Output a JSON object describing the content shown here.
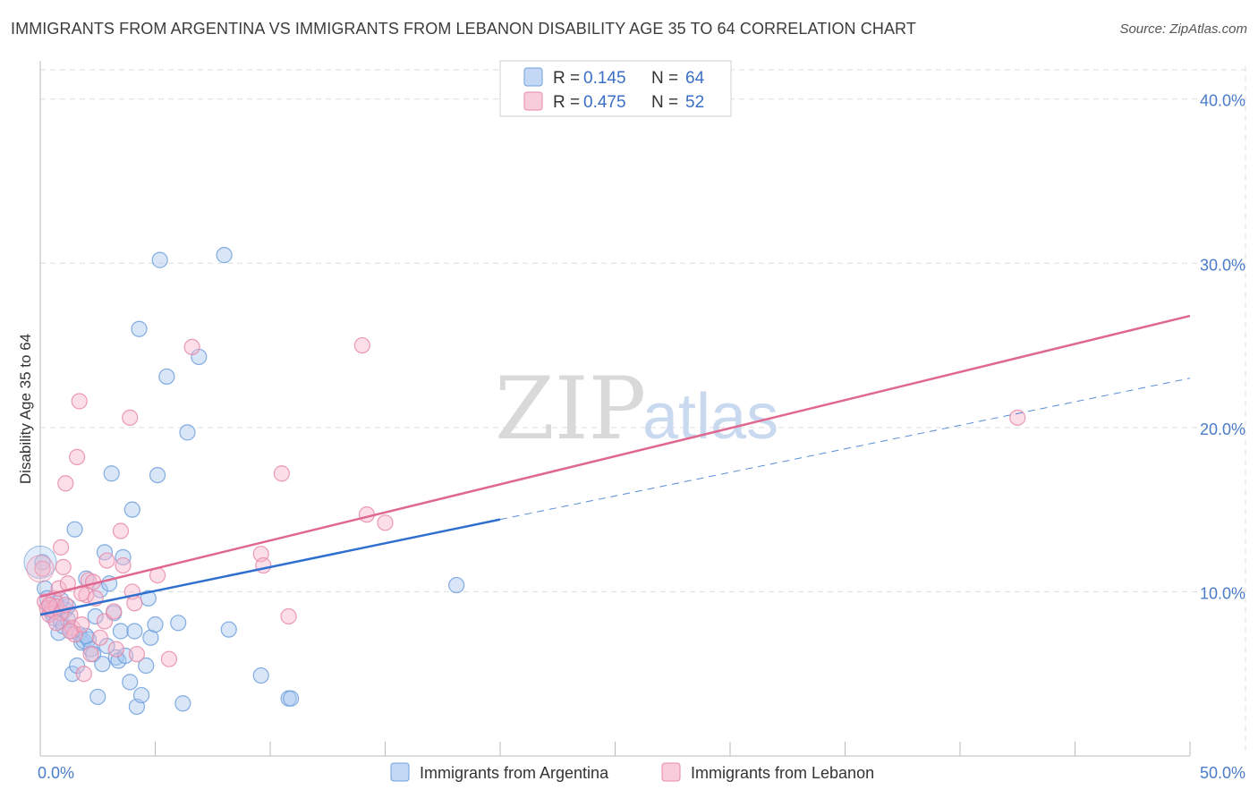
{
  "header": {
    "title": "IMMIGRANTS FROM ARGENTINA VS IMMIGRANTS FROM LEBANON DISABILITY AGE 35 TO 64 CORRELATION CHART",
    "source": "Source: ZipAtlas.com"
  },
  "watermark": {
    "zip": "ZIP",
    "atlas": "atlas"
  },
  "colors": {
    "argentina_fill": "#a9c8f0",
    "argentina_stroke": "#6f9fdc",
    "argentina_line": "#2f6fcf",
    "lebanon_fill": "#f7b6cc",
    "lebanon_stroke": "#e88aa8",
    "lebanon_line": "#e0678f",
    "grid": "#dddddd",
    "tick_label": "#4a7cc9"
  },
  "legend": {
    "rows": [
      {
        "r_label": "R =",
        "r_value": "0.145",
        "n_label": "N =",
        "n_value": "64"
      },
      {
        "r_label": "R =",
        "r_value": "0.475",
        "n_label": "N =",
        "n_value": "52"
      }
    ]
  },
  "chart_data": {
    "type": "scatter",
    "title": "IMMIGRANTS FROM ARGENTINA VS IMMIGRANTS FROM LEBANON DISABILITY AGE 35 TO 64 CORRELATION CHART",
    "xlabel": "",
    "ylabel": "Disability Age 35 to 64",
    "xlim": [
      0,
      50
    ],
    "ylim": [
      0,
      42
    ],
    "x_tick_labels": [
      "0.0%",
      "50.0%"
    ],
    "y_ticks": [
      10,
      20,
      30,
      40
    ],
    "y_tick_labels": [
      "10.0%",
      "20.0%",
      "30.0%",
      "40.0%"
    ],
    "grid": true,
    "legend_position": "top-center",
    "series": [
      {
        "name": "Immigrants from Argentina",
        "R": 0.145,
        "N": 64,
        "trend": {
          "x": [
            0,
            20
          ],
          "y": [
            8.6,
            14.4
          ],
          "dashed_extension_to_x": 50,
          "dashed_end_y": 23.0
        },
        "points": [
          [
            0.1,
            11.8
          ],
          [
            0.2,
            10.2
          ],
          [
            0.3,
            9.6
          ],
          [
            0.4,
            9.0
          ],
          [
            0.5,
            8.7
          ],
          [
            0.6,
            8.4
          ],
          [
            0.7,
            9.3
          ],
          [
            0.8,
            7.5
          ],
          [
            0.9,
            8.2
          ],
          [
            1.0,
            7.9
          ],
          [
            1.1,
            8.9
          ],
          [
            1.2,
            9.1
          ],
          [
            1.3,
            7.6
          ],
          [
            1.4,
            5.0
          ],
          [
            1.5,
            13.8
          ],
          [
            1.6,
            5.5
          ],
          [
            1.7,
            7.4
          ],
          [
            1.8,
            6.9
          ],
          [
            1.9,
            7.0
          ],
          [
            2.0,
            10.8
          ],
          [
            2.1,
            7.1
          ],
          [
            2.2,
            6.5
          ],
          [
            2.3,
            6.2
          ],
          [
            2.4,
            8.5
          ],
          [
            2.5,
            3.6
          ],
          [
            2.6,
            10.1
          ],
          [
            2.7,
            5.6
          ],
          [
            2.8,
            12.4
          ],
          [
            2.9,
            6.7
          ],
          [
            3.0,
            10.5
          ],
          [
            3.1,
            17.2
          ],
          [
            3.2,
            8.7
          ],
          [
            3.3,
            6.0
          ],
          [
            3.4,
            5.8
          ],
          [
            3.5,
            7.6
          ],
          [
            3.6,
            12.1
          ],
          [
            3.7,
            6.1
          ],
          [
            3.9,
            4.5
          ],
          [
            4.0,
            15.0
          ],
          [
            4.1,
            7.6
          ],
          [
            4.2,
            3.0
          ],
          [
            4.3,
            26.0
          ],
          [
            4.4,
            3.7
          ],
          [
            4.6,
            5.5
          ],
          [
            4.7,
            9.6
          ],
          [
            4.8,
            7.2
          ],
          [
            5.0,
            8.0
          ],
          [
            5.1,
            17.1
          ],
          [
            5.2,
            30.2
          ],
          [
            5.5,
            23.1
          ],
          [
            6.0,
            8.1
          ],
          [
            6.2,
            3.2
          ],
          [
            6.4,
            19.7
          ],
          [
            6.9,
            24.3
          ],
          [
            8.0,
            30.5
          ],
          [
            8.2,
            7.7
          ],
          [
            9.6,
            4.9
          ],
          [
            10.8,
            3.5
          ],
          [
            10.9,
            3.5
          ],
          [
            18.1,
            10.4
          ],
          [
            0.6,
            8.8
          ],
          [
            1.2,
            8.3
          ],
          [
            2.0,
            7.3
          ],
          [
            0.9,
            9.5
          ]
        ]
      },
      {
        "name": "Immigrants from Lebanon",
        "R": 0.475,
        "N": 52,
        "trend": {
          "x": [
            0,
            50
          ],
          "y": [
            9.7,
            26.8
          ]
        },
        "points": [
          [
            0.1,
            11.4
          ],
          [
            0.2,
            9.4
          ],
          [
            0.3,
            9.0
          ],
          [
            0.4,
            8.6
          ],
          [
            0.5,
            8.9
          ],
          [
            0.6,
            9.6
          ],
          [
            0.7,
            9.1
          ],
          [
            0.8,
            10.2
          ],
          [
            0.9,
            12.7
          ],
          [
            1.0,
            11.5
          ],
          [
            1.1,
            16.6
          ],
          [
            1.2,
            10.5
          ],
          [
            1.3,
            8.6
          ],
          [
            1.4,
            7.8
          ],
          [
            1.5,
            7.4
          ],
          [
            1.6,
            18.2
          ],
          [
            1.7,
            21.6
          ],
          [
            1.8,
            8.0
          ],
          [
            1.9,
            5.0
          ],
          [
            2.0,
            9.8
          ],
          [
            2.1,
            10.7
          ],
          [
            2.2,
            6.2
          ],
          [
            2.4,
            9.6
          ],
          [
            2.6,
            7.2
          ],
          [
            2.8,
            8.2
          ],
          [
            2.9,
            11.9
          ],
          [
            3.2,
            8.8
          ],
          [
            3.3,
            6.5
          ],
          [
            3.5,
            13.7
          ],
          [
            3.6,
            11.6
          ],
          [
            3.9,
            20.6
          ],
          [
            4.0,
            10.0
          ],
          [
            4.1,
            9.3
          ],
          [
            4.2,
            6.2
          ],
          [
            5.1,
            11.0
          ],
          [
            5.6,
            5.9
          ],
          [
            6.6,
            24.9
          ],
          [
            9.6,
            12.3
          ],
          [
            9.7,
            11.6
          ],
          [
            10.5,
            17.2
          ],
          [
            10.8,
            8.5
          ],
          [
            14.0,
            25.0
          ],
          [
            14.2,
            14.7
          ],
          [
            15.0,
            14.2
          ],
          [
            42.5,
            20.6
          ],
          [
            0.4,
            9.2
          ],
          [
            0.9,
            8.7
          ],
          [
            1.3,
            7.6
          ],
          [
            2.3,
            10.6
          ],
          [
            0.7,
            8.1
          ],
          [
            1.1,
            9.2
          ],
          [
            1.8,
            9.9
          ]
        ]
      }
    ]
  }
}
